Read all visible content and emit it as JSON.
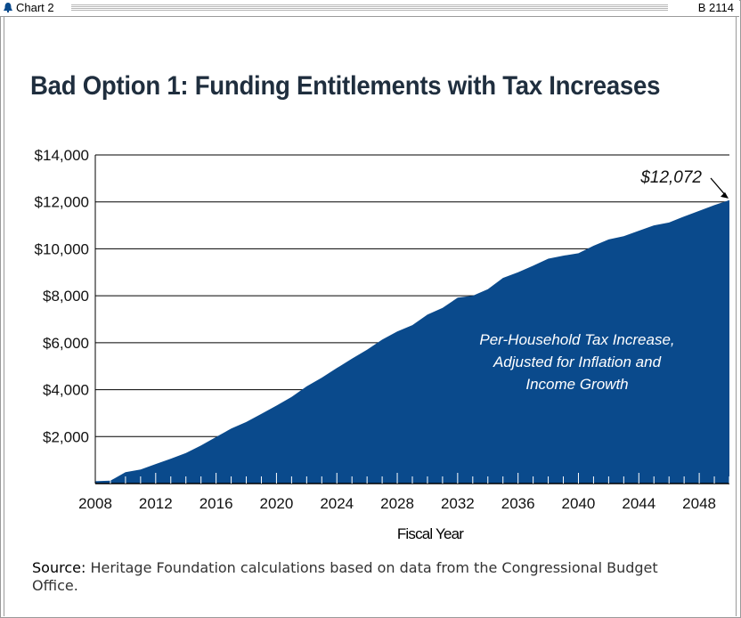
{
  "header": {
    "chart_label": "Chart 2",
    "chart_id": "B 2114",
    "logo_icon": "liberty-bell-icon"
  },
  "title": "Bad Option 1: Funding Entitlements with Tax Increases",
  "annotation": {
    "value_label": "$12,072",
    "series_label_lines": [
      "Per-Household Tax Increase,",
      "Adjusted for Inflation and",
      "Income Growth"
    ]
  },
  "source": {
    "label": "Source:",
    "text": "Heritage Foundation calculations based on data from the Congressional Budget Office."
  },
  "chart_data": {
    "type": "area",
    "title": "Bad Option 1: Funding Entitlements with Tax Increases",
    "xlabel": "Fiscal Year",
    "ylabel": "",
    "xlim": [
      2008,
      2050
    ],
    "ylim": [
      0,
      14000
    ],
    "x_ticks": [
      2008,
      2012,
      2016,
      2020,
      2024,
      2028,
      2032,
      2036,
      2040,
      2044,
      2048
    ],
    "y_ticks": [
      2000,
      4000,
      6000,
      8000,
      10000,
      12000,
      14000
    ],
    "y_tick_labels": [
      "$2,000",
      "$4,000",
      "$6,000",
      "$8,000",
      "$10,000",
      "$12,000",
      "$14,000"
    ],
    "grid": "horizontal",
    "colors": {
      "area": "#0a4a8c",
      "grid": "#000000"
    },
    "series": [
      {
        "name": "Per-Household Tax Increase, Adjusted for Inflation and Income Growth",
        "x": [
          2008,
          2009,
          2010,
          2011,
          2012,
          2013,
          2014,
          2015,
          2016,
          2017,
          2018,
          2019,
          2020,
          2021,
          2022,
          2023,
          2024,
          2025,
          2026,
          2027,
          2028,
          2029,
          2030,
          2031,
          2032,
          2033,
          2034,
          2035,
          2036,
          2037,
          2038,
          2039,
          2040,
          2041,
          2042,
          2043,
          2044,
          2045,
          2046,
          2047,
          2048,
          2049,
          2050
        ],
        "values": [
          100,
          120,
          480,
          600,
          830,
          1060,
          1300,
          1620,
          1980,
          2340,
          2620,
          2970,
          3320,
          3690,
          4140,
          4510,
          4920,
          5320,
          5700,
          6130,
          6480,
          6750,
          7200,
          7480,
          7920,
          8000,
          8280,
          8760,
          9000,
          9280,
          9580,
          9710,
          9810,
          10130,
          10400,
          10540,
          10770,
          11000,
          11120,
          11380,
          11620,
          11860,
          12072
        ]
      }
    ]
  }
}
